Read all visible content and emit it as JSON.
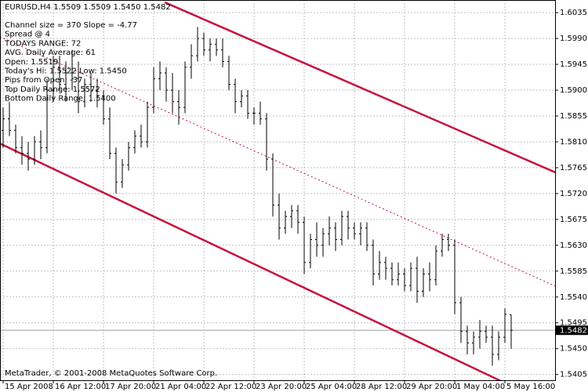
{
  "chart_data": {
    "type": "ohlc",
    "title": "EURUSD,H4  1.5509 1.5509 1.5450 1.5482",
    "info": [
      "Channel size = 370 Slope = -4.77",
      "Spread @ 4",
      "TODAYS RANGE: 72",
      "AVG. Daily Average: 61",
      "Open: 1.5519",
      "Today's Hi: 1.5522  Low: 1.5450",
      "Pips from Open: -37",
      "Top Daily Range: 1.5572",
      "Bottom Daily Range: 1.5400"
    ],
    "footer": "MetaTrader, © 2001-2008 MetaQuotes Software Corp.",
    "color": "#000000",
    "open": [
      1.583,
      1.585,
      1.583,
      1.58,
      1.579,
      1.578,
      1.581,
      1.58,
      1.59,
      1.594,
      1.591,
      1.593,
      1.592,
      1.588,
      1.591,
      1.59,
      1.589,
      1.585,
      1.579,
      1.574,
      1.577,
      1.58,
      1.582,
      1.581,
      1.587,
      1.592,
      1.593,
      1.59,
      1.588,
      1.587,
      1.594,
      1.596,
      1.599,
      1.597,
      1.598,
      1.597,
      1.595,
      1.591,
      1.588,
      1.589,
      1.586,
      1.586,
      1.585,
      1.578,
      1.57,
      1.566,
      1.568,
      1.569,
      1.567,
      1.56,
      1.564,
      1.563,
      1.565,
      1.566,
      1.564,
      1.568,
      1.566,
      1.565,
      1.566,
      1.563,
      1.558,
      1.56,
      1.559,
      1.557,
      1.558,
      1.556,
      1.559,
      1.555,
      1.558,
      1.557,
      1.562,
      1.564,
      1.563,
      1.553,
      1.548,
      1.546,
      1.547,
      1.548,
      1.547,
      1.544,
      1.547,
      1.5509
    ],
    "high": [
      1.587,
      1.588,
      1.584,
      1.582,
      1.581,
      1.582,
      1.583,
      1.592,
      1.596,
      1.596,
      1.595,
      1.597,
      1.595,
      1.592,
      1.593,
      1.592,
      1.59,
      1.587,
      1.58,
      1.578,
      1.581,
      1.583,
      1.584,
      1.588,
      1.594,
      1.595,
      1.594,
      1.593,
      1.59,
      1.595,
      1.598,
      1.601,
      1.6,
      1.599,
      1.599,
      1.599,
      1.596,
      1.592,
      1.59,
      1.59,
      1.587,
      1.588,
      1.586,
      1.579,
      1.572,
      1.569,
      1.57,
      1.57,
      1.568,
      1.565,
      1.567,
      1.566,
      1.568,
      1.567,
      1.569,
      1.569,
      1.567,
      1.567,
      1.567,
      1.564,
      1.562,
      1.561,
      1.56,
      1.56,
      1.559,
      1.56,
      1.561,
      1.559,
      1.56,
      1.563,
      1.565,
      1.565,
      1.564,
      1.554,
      1.549,
      1.548,
      1.55,
      1.549,
      1.549,
      1.548,
      1.552,
      1.5509
    ],
    "low": [
      1.58,
      1.582,
      1.579,
      1.577,
      1.576,
      1.577,
      1.578,
      1.579,
      1.588,
      1.59,
      1.588,
      1.59,
      1.586,
      1.587,
      1.588,
      1.587,
      1.584,
      1.578,
      1.572,
      1.573,
      1.576,
      1.579,
      1.58,
      1.58,
      1.586,
      1.59,
      1.588,
      1.586,
      1.584,
      1.586,
      1.592,
      1.595,
      1.596,
      1.595,
      1.596,
      1.594,
      1.59,
      1.586,
      1.587,
      1.585,
      1.584,
      1.584,
      1.576,
      1.568,
      1.564,
      1.565,
      1.566,
      1.565,
      1.558,
      1.559,
      1.561,
      1.561,
      1.563,
      1.562,
      1.563,
      1.564,
      1.564,
      1.563,
      1.562,
      1.556,
      1.557,
      1.557,
      1.556,
      1.556,
      1.555,
      1.555,
      1.553,
      1.554,
      1.555,
      1.556,
      1.561,
      1.562,
      1.551,
      1.546,
      1.544,
      1.544,
      1.545,
      1.546,
      1.542,
      1.543,
      1.546,
      1.545
    ],
    "close": [
      1.585,
      1.583,
      1.58,
      1.579,
      1.578,
      1.581,
      1.58,
      1.59,
      1.594,
      1.591,
      1.593,
      1.592,
      1.588,
      1.591,
      1.59,
      1.589,
      1.585,
      1.579,
      1.574,
      1.577,
      1.58,
      1.582,
      1.581,
      1.587,
      1.592,
      1.593,
      1.59,
      1.588,
      1.587,
      1.594,
      1.596,
      1.599,
      1.597,
      1.598,
      1.597,
      1.595,
      1.591,
      1.588,
      1.589,
      1.586,
      1.586,
      1.585,
      1.578,
      1.57,
      1.566,
      1.568,
      1.569,
      1.567,
      1.56,
      1.564,
      1.563,
      1.565,
      1.566,
      1.564,
      1.568,
      1.566,
      1.565,
      1.566,
      1.563,
      1.558,
      1.56,
      1.559,
      1.557,
      1.558,
      1.556,
      1.559,
      1.555,
      1.558,
      1.557,
      1.562,
      1.564,
      1.563,
      1.553,
      1.548,
      1.546,
      1.547,
      1.548,
      1.547,
      1.544,
      1.547,
      1.551,
      1.5482
    ],
    "xticks": [
      {
        "value": 0,
        "label": "15 Apr 2008"
      },
      {
        "value": 8,
        "label": "16 Apr 12:00"
      },
      {
        "value": 16,
        "label": "17 Apr 20:00"
      },
      {
        "value": 24,
        "label": "21 Apr 04:00"
      },
      {
        "value": 32,
        "label": "22 Apr 12:00"
      },
      {
        "value": 40,
        "label": "23 Apr 20:00"
      },
      {
        "value": 48,
        "label": "25 Apr 04:00"
      },
      {
        "value": 56,
        "label": "28 Apr 12:00"
      },
      {
        "value": 64,
        "label": "29 Apr 20:00"
      },
      {
        "value": 72,
        "label": "1 May 04:00"
      },
      {
        "value": 80,
        "label": "5 May 16:00"
      }
    ],
    "xlim": [
      -0.5,
      88
    ],
    "ylim": [
      1.5395,
      1.6057
    ],
    "yticks": [
      1.6035,
      {
        "value": 1.599,
        "label": "1.5990"
      },
      1.5945,
      {
        "value": 1.59,
        "label": "1.5900"
      },
      1.5855,
      {
        "value": 1.581,
        "label": "1.5810"
      },
      1.5765,
      {
        "value": 1.572,
        "label": "1.5720"
      },
      1.5675,
      {
        "value": 1.563,
        "label": "1.5630"
      },
      1.5585,
      {
        "value": 1.554,
        "label": "1.5540"
      },
      1.5495,
      {
        "value": 1.545,
        "label": "1.5450"
      },
      1.5405
    ],
    "grid": true,
    "current_price": 1.5482,
    "lines": [
      {
        "x": [
          25.75,
          88
        ],
        "y": [
          1.6053,
          1.5757
        ],
        "color": "#c8103c",
        "style": "solid"
      },
      {
        "x": [
          -0.5,
          85.1
        ],
        "y": [
          1.5807,
          1.5364
        ],
        "color": "#c8103c",
        "style": "solid"
      },
      {
        "x": [
          -0.5,
          88
        ],
        "y": [
          1.5993,
          1.5559
        ],
        "color": "#c8103c",
        "style": "dotted"
      }
    ]
  }
}
